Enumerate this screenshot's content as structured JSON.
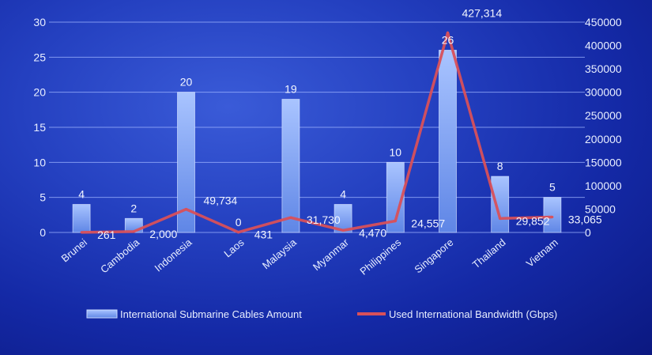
{
  "chart_data": {
    "type": "bar",
    "categories": [
      "Brunei",
      "Cambodia",
      "Indonesia",
      "Laos",
      "Malaysia",
      "Myanmar",
      "Philippines",
      "Singapore",
      "Thailand",
      "Vietnam"
    ],
    "series": [
      {
        "name": "International Submarine Cables Amount",
        "type": "bar",
        "axis": "left",
        "values": [
          4,
          2,
          20,
          0,
          19,
          4,
          10,
          26,
          8,
          5
        ],
        "labels": [
          "4",
          "2",
          "20",
          "0",
          "19",
          "4",
          "10",
          "26",
          "8",
          "5"
        ]
      },
      {
        "name": "Used International Bandwidth (Gbps)",
        "type": "line",
        "axis": "right",
        "values": [
          261,
          2000,
          49734,
          431,
          31730,
          4470,
          24557,
          427314,
          29852,
          33065
        ],
        "labels": [
          "261",
          "2,000",
          "49,734",
          "431",
          "31,730",
          "4,470",
          "24,557",
          "427,314",
          "29,852",
          "33,065"
        ]
      }
    ],
    "ylim_left": [
      0,
      30
    ],
    "yticks_left": [
      "0",
      "5",
      "10",
      "15",
      "20",
      "25",
      "30"
    ],
    "ylim_right": [
      0,
      450000
    ],
    "yticks_right": [
      "0",
      "50000",
      "100000",
      "150000",
      "200000",
      "250000",
      "300000",
      "350000",
      "400000",
      "450000"
    ],
    "grid": true,
    "legend_position": "bottom",
    "colors": {
      "bar": "#7ea6f2",
      "line": "#d8505a",
      "grid": "#9fb4ff",
      "text": "#e8eeff"
    }
  }
}
